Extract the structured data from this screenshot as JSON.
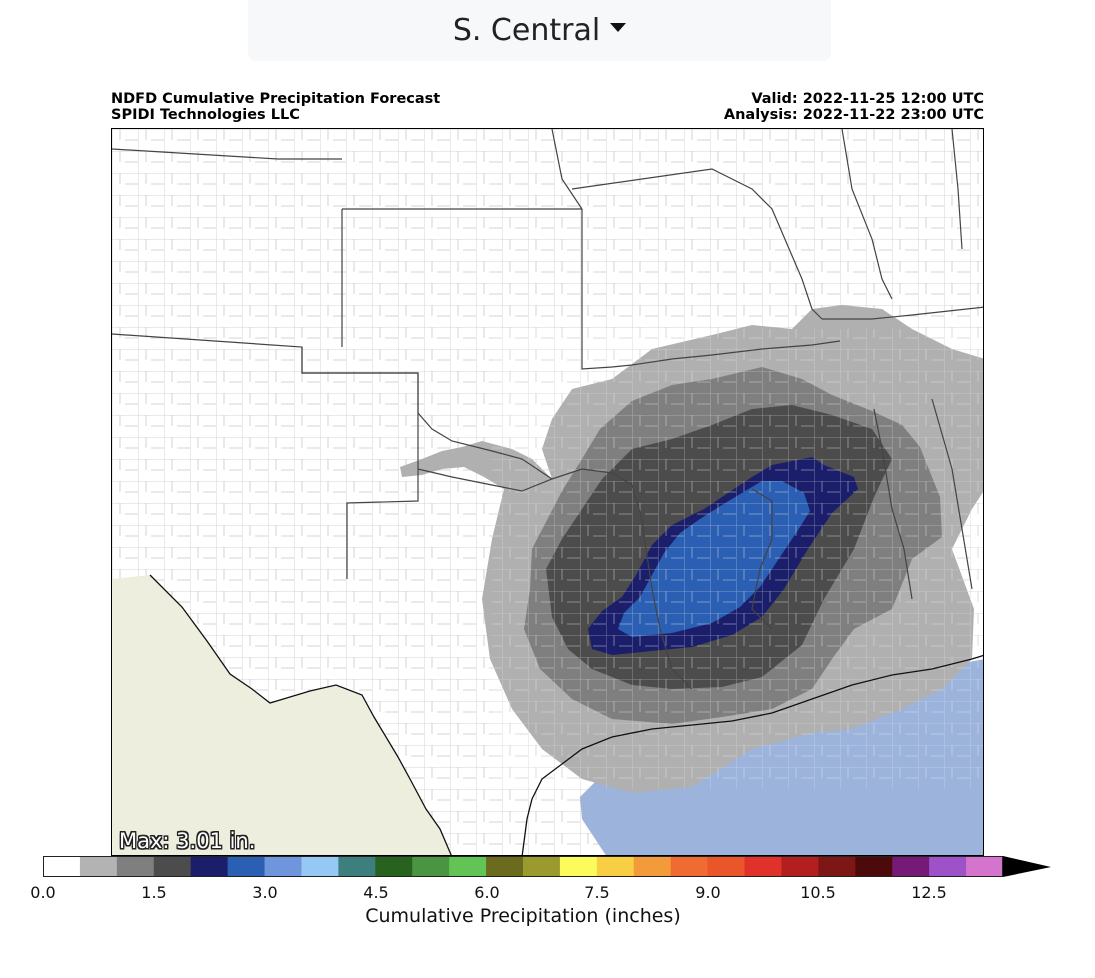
{
  "region_selector": {
    "label": "S. Central",
    "icon": "caret-down-icon"
  },
  "header": {
    "title": "NDFD Cumulative Precipitation Forecast",
    "credit": "SPIDI Technologies LLC",
    "valid": "Valid: 2022-11-25 12:00 UTC",
    "analysis": "Analysis: 2022-11-22 23:00 UTC"
  },
  "map": {
    "max_label": "Max: 3.01 in."
  },
  "colorbar": {
    "title": "Cumulative Precipitation (inches)",
    "tick_labels": [
      "0.0",
      "1.5",
      "3.0",
      "4.5",
      "6.0",
      "7.5",
      "9.0",
      "10.5",
      "12.5"
    ],
    "colors": [
      "#ffffff",
      "#b3b3b3",
      "#7f7f7f",
      "#4c4c4c",
      "#1b1f6b",
      "#2b5fb4",
      "#6f96dd",
      "#96c8f4",
      "#3d7f7f",
      "#27621f",
      "#4a9442",
      "#62c455",
      "#6b6b1e",
      "#9a9a2f",
      "#fbfb5c",
      "#f8ce45",
      "#f39b3a",
      "#ef6b32",
      "#e8562a",
      "#e0322a",
      "#b21f1e",
      "#7d1716",
      "#4c0b0a",
      "#761a78",
      "#9e52c8",
      "#d474cc"
    ],
    "extend_color": "#000000"
  },
  "colors": {
    "land": "#ffffff",
    "mexico": "#eeeedf",
    "water": "#9cb4dc",
    "p_light": "#b0b0b0",
    "p_mid": "#7f7f7f",
    "p_dark": "#4c4c4c",
    "p_navy": "#1b1f6b",
    "p_blue": "#2b5fb4"
  }
}
